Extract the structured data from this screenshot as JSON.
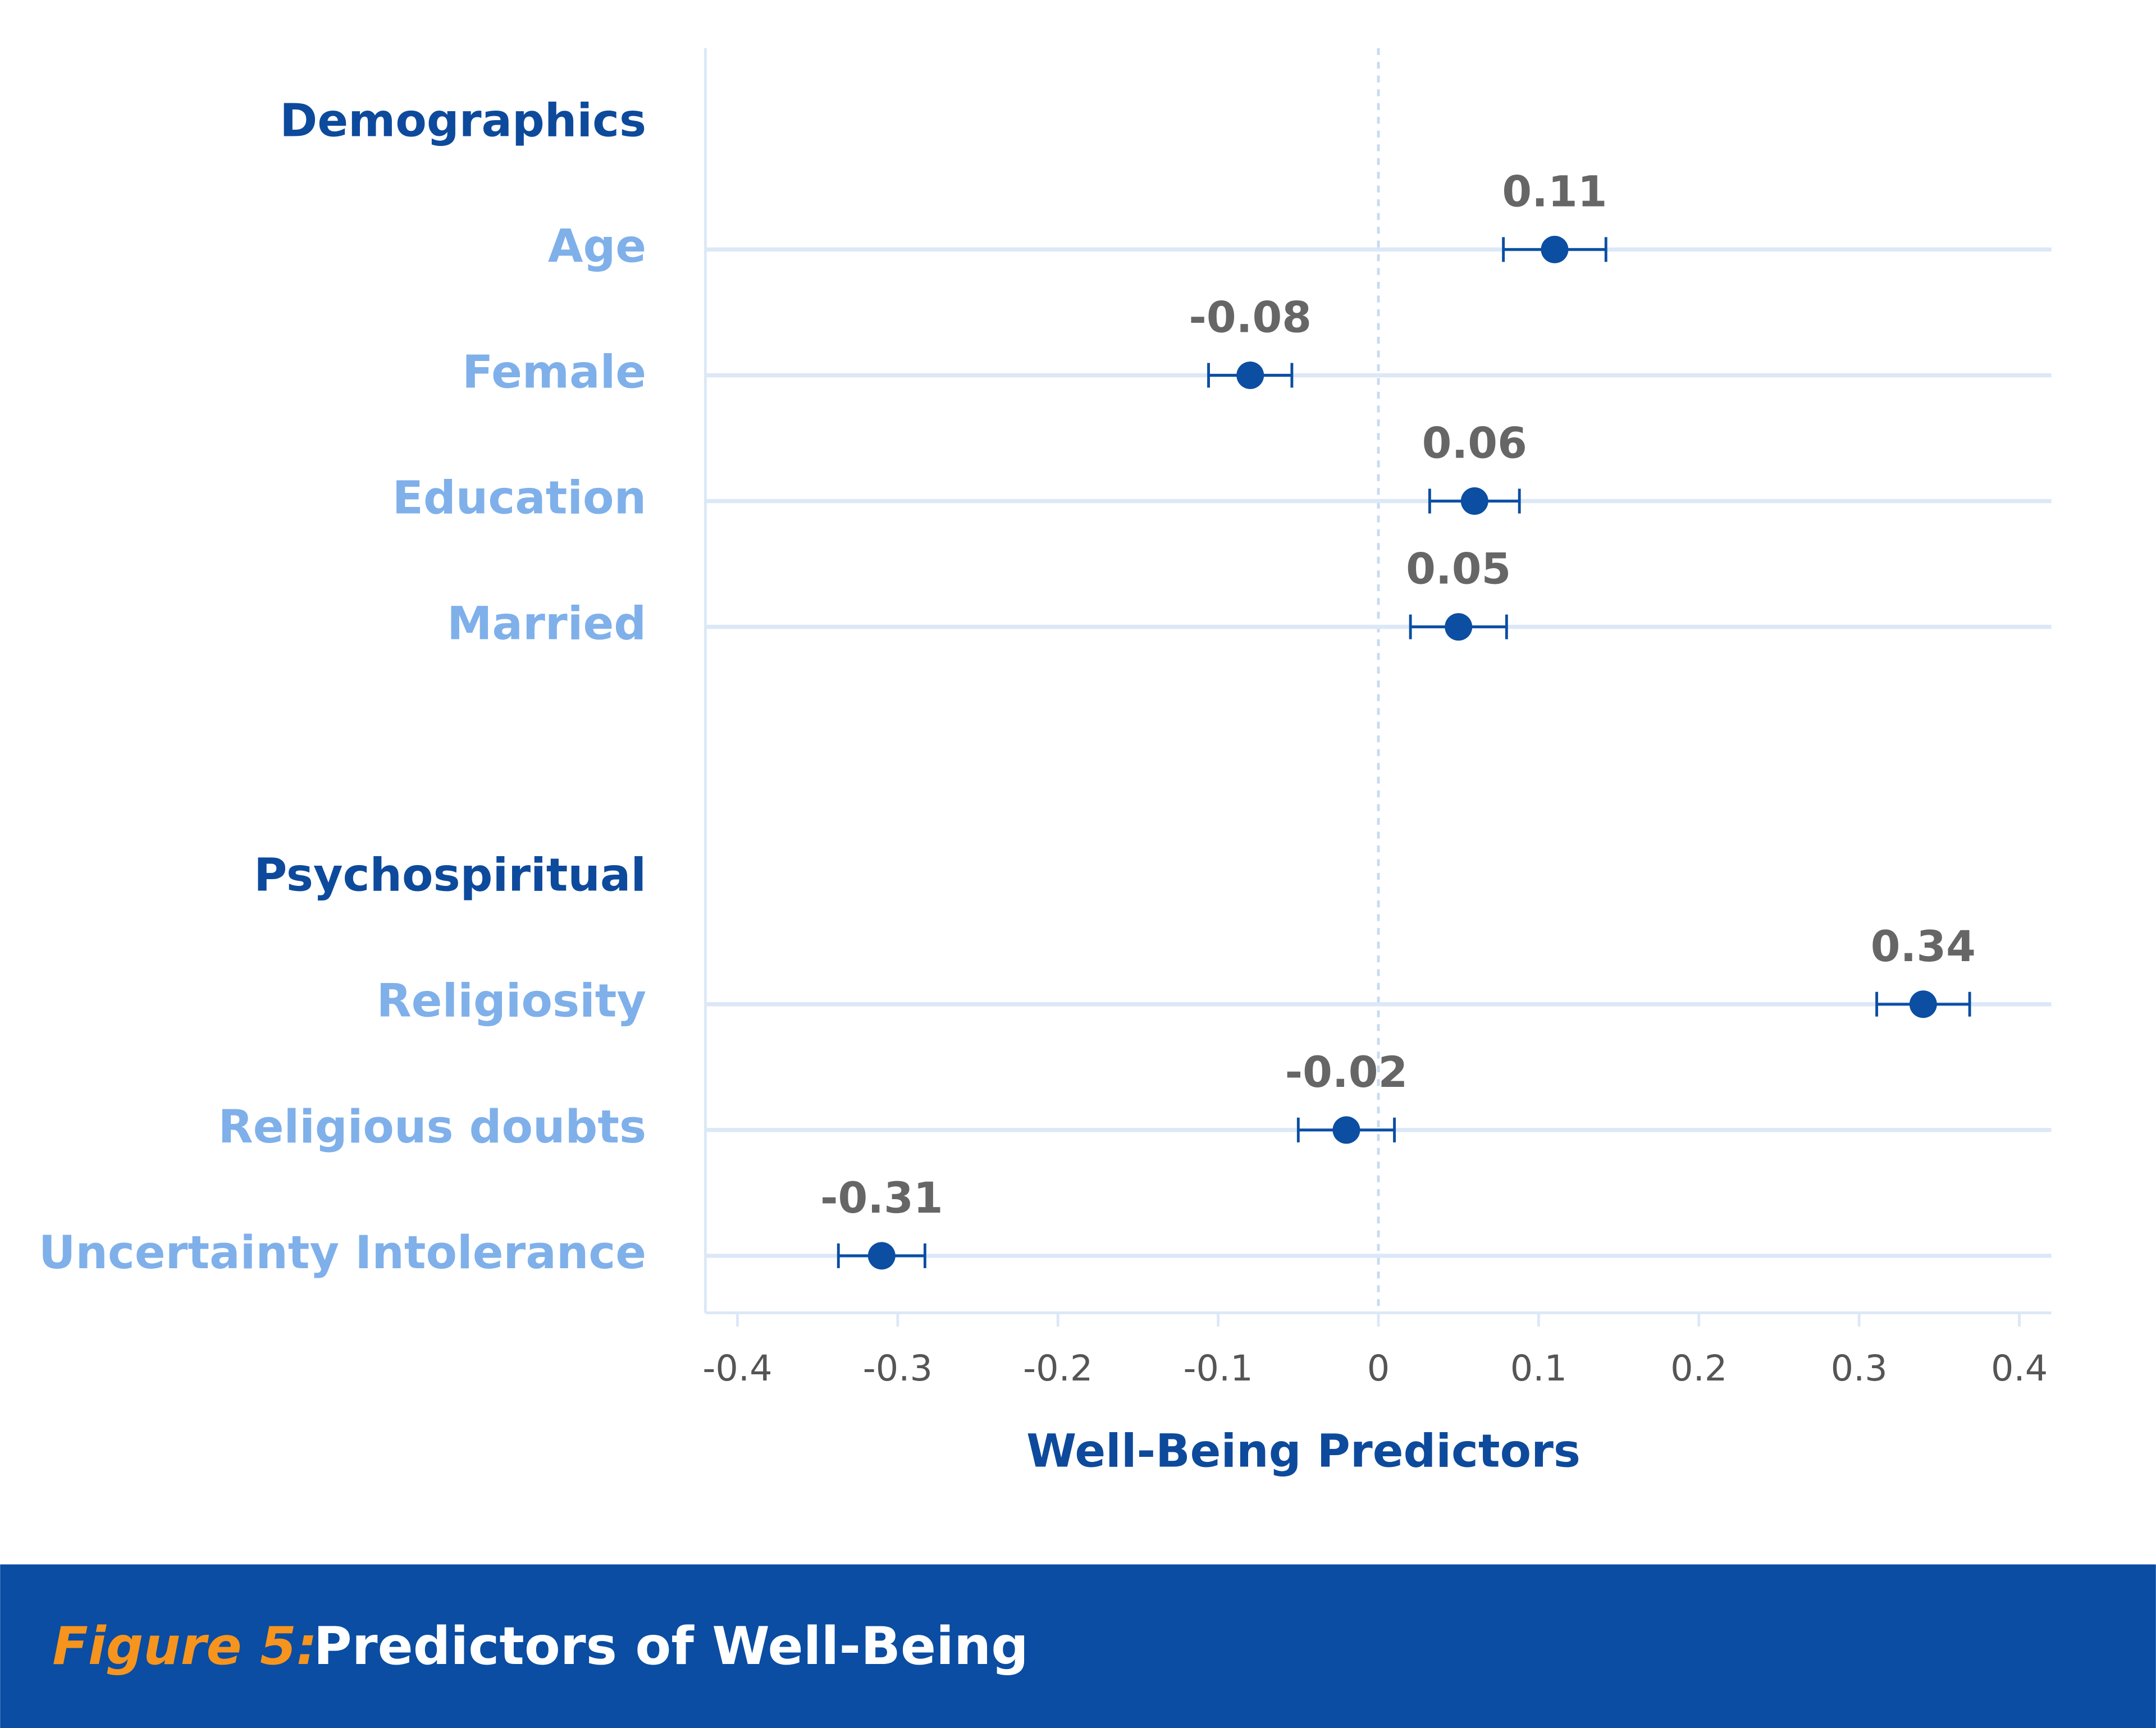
{
  "chart_data": {
    "type": "forest",
    "caption_prefix": "Figure 5:",
    "title": "Predictors of Well-Being",
    "xlabel": "Well-Being Predictors",
    "xlim": [
      -0.42,
      0.42
    ],
    "xticks": [
      -0.4,
      -0.3,
      -0.2,
      -0.1,
      0,
      0.1,
      0.2,
      0.3,
      0.4
    ],
    "color": "#0b4ea2",
    "groups": [
      {
        "name": "Demographics",
        "categories": [
          "Age",
          "Female",
          "Education",
          "Married"
        ],
        "values": [
          0.11,
          -0.08,
          0.06,
          0.05
        ],
        "errors": [
          0.032,
          0.026,
          0.028,
          0.03
        ]
      },
      {
        "name": "Psychospiritual",
        "categories": [
          "Religiosity",
          "Religious doubts",
          "Uncertainty Intolerance"
        ],
        "values": [
          0.34,
          -0.02,
          -0.31
        ],
        "errors": [
          0.029,
          0.03,
          0.027
        ]
      }
    ]
  }
}
